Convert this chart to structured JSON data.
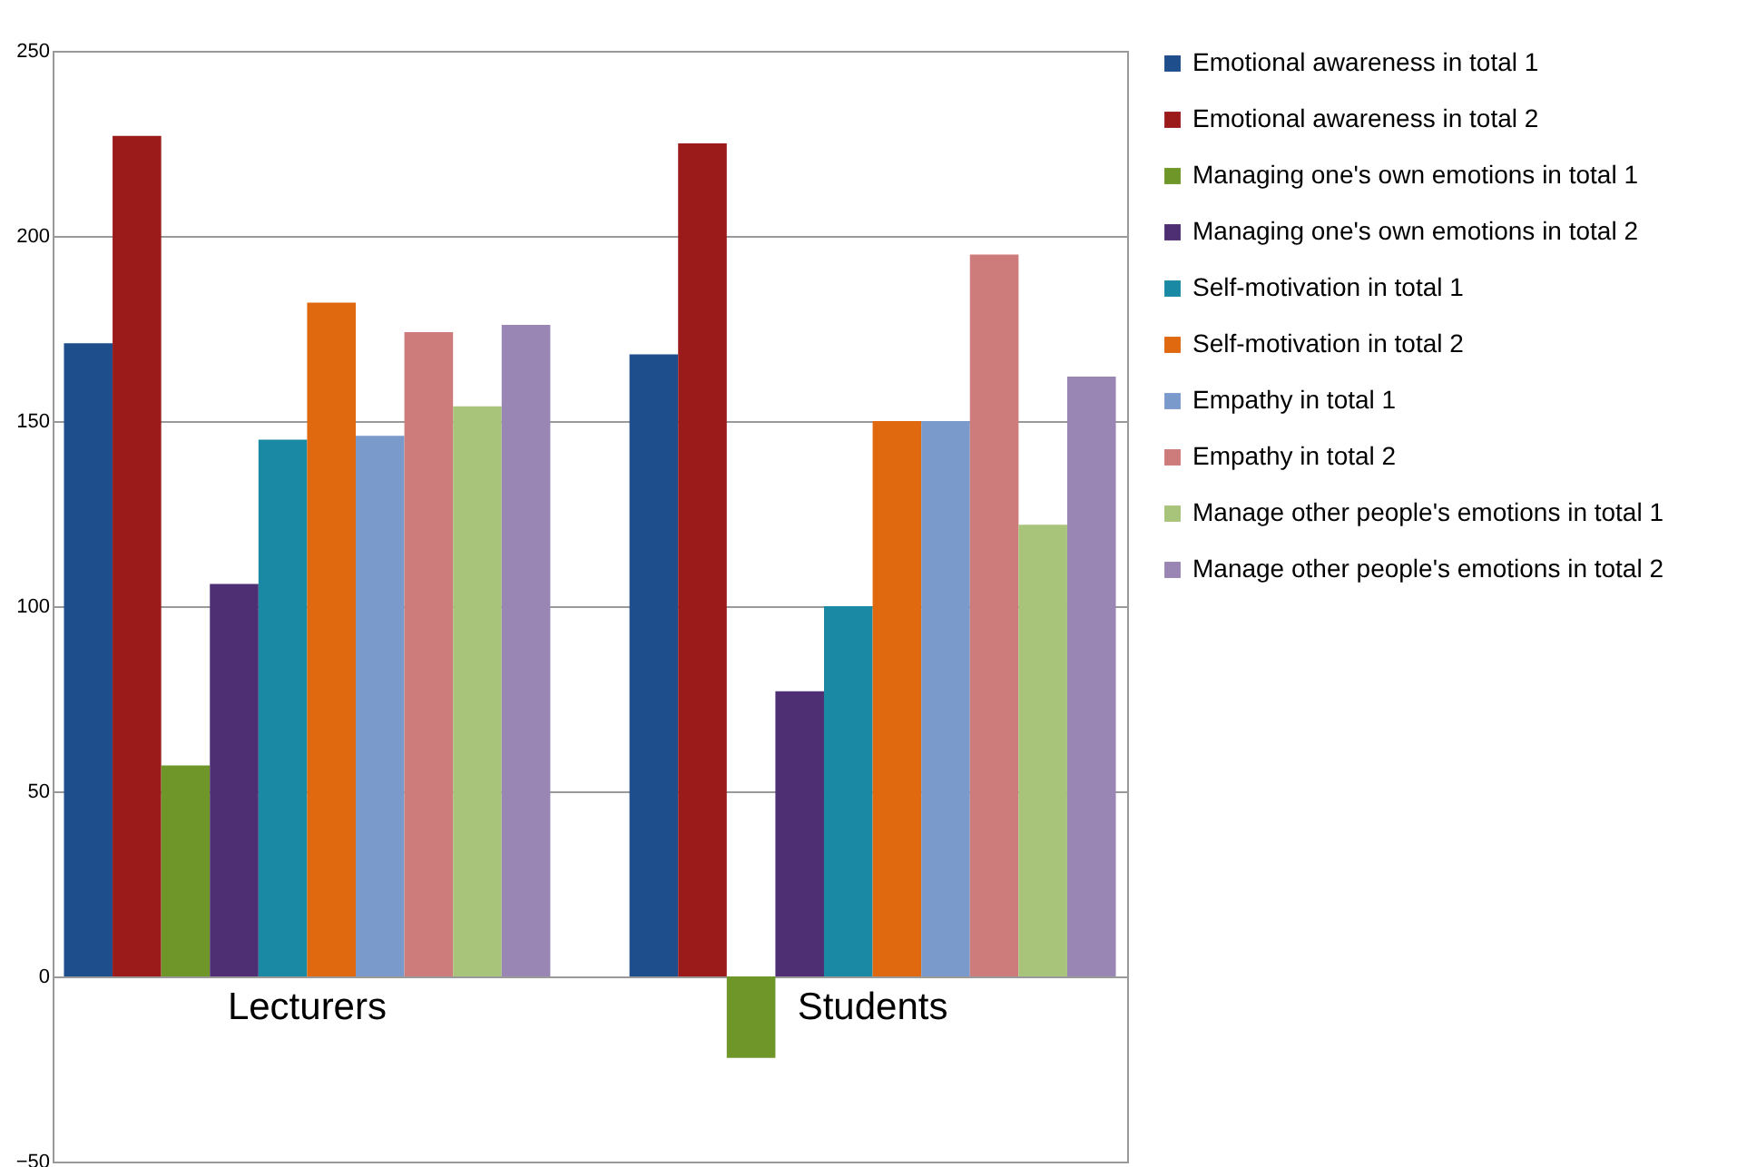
{
  "chart_data": {
    "type": "bar",
    "categories": [
      "Lecturers",
      "Students"
    ],
    "series": [
      {
        "name": "Emotional awareness in total 1",
        "color": "#1f4e8c",
        "values": [
          171,
          168
        ]
      },
      {
        "name": "Emotional awareness in total 2",
        "color": "#9b1b1b",
        "values": [
          227,
          225
        ]
      },
      {
        "name": "Managing one's own emotions in total 1",
        "color": "#6e9628",
        "values": [
          57,
          -22
        ]
      },
      {
        "name": "Managing one's own emotions in total 2",
        "color": "#4f2f74",
        "values": [
          106,
          77
        ]
      },
      {
        "name": "Self-motivation in total 1",
        "color": "#1a8aa4",
        "values": [
          145,
          100
        ]
      },
      {
        "name": "Self-motivation in total 2",
        "color": "#e0680e",
        "values": [
          182,
          150
        ]
      },
      {
        "name": "Empathy in total 1",
        "color": "#7b9acc",
        "values": [
          146,
          150
        ]
      },
      {
        "name": "Empathy in total 2",
        "color": "#cd7b7b",
        "values": [
          174,
          195
        ]
      },
      {
        "name": "Manage other people's emotions in total 1",
        "color": "#a8c47a",
        "values": [
          154,
          122
        ]
      },
      {
        "name": "Manage other people's emotions in total 2",
        "color": "#9a86b5",
        "values": [
          176,
          162
        ]
      }
    ],
    "ylim": [
      -50,
      250
    ],
    "yticks": [
      -50,
      0,
      50,
      100,
      150,
      200,
      250
    ],
    "grid": "y",
    "legend": "right"
  }
}
